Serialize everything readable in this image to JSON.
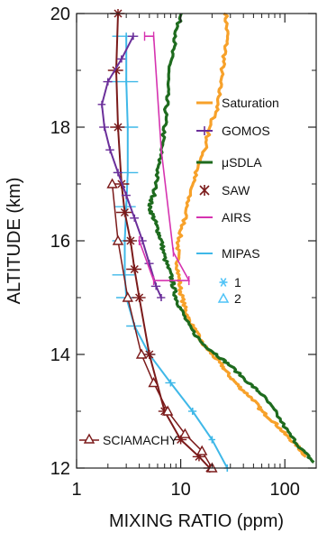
{
  "chart_data": {
    "type": "line",
    "xlabel": "MIXING RATIO (ppm)",
    "ylabel": "ALTITUDE (km)",
    "xscale": "log",
    "xlim": [
      1,
      200
    ],
    "ylim": [
      12,
      20
    ],
    "xticks": [
      {
        "value": 1,
        "label": "1"
      },
      {
        "value": 10,
        "label": "10"
      },
      {
        "value": 100,
        "label": "100"
      }
    ],
    "yticks": [
      {
        "value": 12,
        "label": "12"
      },
      {
        "value": 14,
        "label": "14"
      },
      {
        "value": 16,
        "label": "16"
      },
      {
        "value": 18,
        "label": "18"
      },
      {
        "value": 20,
        "label": "20"
      }
    ],
    "grid": false,
    "legend_position": "right",
    "legend_markers": [
      {
        "label": "1",
        "marker": "asterisk",
        "color": "#4FC3F7"
      },
      {
        "label": "2",
        "marker": "triangle",
        "color": "#4FC3F7"
      }
    ],
    "series": [
      {
        "name": "Saturation",
        "color": "#F7A12A",
        "style": "jagged",
        "x": [
          27,
          28,
          26,
          24,
          23,
          19,
          17,
          14,
          12,
          11,
          9.5,
          9.3,
          9.5,
          10,
          11,
          12,
          14,
          16,
          20,
          25,
          30,
          38,
          50,
          60,
          80,
          100,
          130,
          160
        ],
        "y": [
          20,
          19.6,
          19.2,
          18.8,
          18.4,
          18.0,
          17.6,
          17.2,
          16.8,
          16.4,
          16.0,
          15.7,
          15.4,
          15.1,
          14.8,
          14.6,
          14.4,
          14.2,
          14.0,
          13.8,
          13.6,
          13.4,
          13.2,
          13.0,
          12.8,
          12.6,
          12.4,
          12.2
        ]
      },
      {
        "name": "μSDLA",
        "color": "#1E6B1E",
        "style": "jagged",
        "x": [
          10,
          9,
          8,
          7.5,
          7.3,
          7,
          6.5,
          6,
          5.5,
          5.0,
          5.5,
          6,
          6.5,
          7,
          8,
          8.5,
          9,
          10,
          12,
          16,
          22,
          30,
          45,
          60,
          80,
          110,
          150,
          190
        ],
        "y": [
          20,
          19.6,
          19.2,
          18.8,
          18.4,
          18.0,
          17.6,
          17.2,
          16.8,
          16.6,
          16.4,
          16.2,
          16.0,
          15.7,
          15.4,
          15.2,
          15.0,
          14.8,
          14.5,
          14.2,
          14.0,
          13.8,
          13.5,
          13.3,
          13.0,
          12.6,
          12.3,
          12.1
        ]
      },
      {
        "name": "GOMOS",
        "color": "#6B2F9A",
        "style": "errorbar",
        "x": [
          3.5,
          2.7,
          2.0,
          1.75,
          1.85,
          2.1,
          2.5,
          3.0,
          3.6,
          4.3,
          5.0,
          5.8,
          6.5
        ],
        "y": [
          19.6,
          19.2,
          18.8,
          18.4,
          18.0,
          17.6,
          17.2,
          16.8,
          16.4,
          16.0,
          15.6,
          15.2,
          15.0
        ],
        "xerr": [
          0.4,
          0.25,
          0.2,
          0.15,
          0.2,
          0.2,
          0.25,
          0.3,
          0.35,
          0.4,
          0.5,
          0.6,
          0.6
        ]
      },
      {
        "name": "SAW",
        "color": "#7B1A1A",
        "style": "errorbar",
        "x": [
          2.5,
          2.4,
          2.5,
          2.7,
          2.9,
          3.3,
          3.6,
          4.0,
          5.0,
          7.0,
          10,
          15,
          19
        ],
        "y": [
          20.0,
          19.0,
          18.0,
          17.0,
          16.5,
          16.0,
          15.5,
          15.0,
          14.0,
          13.0,
          12.5,
          12.2,
          12.0
        ],
        "xerr": [
          0.4,
          0.4,
          0.4,
          0.5,
          0.5,
          0.5,
          0.6,
          0.6,
          0.7,
          0.9,
          1.4,
          2.0,
          2.5
        ]
      },
      {
        "name": "AIRS",
        "color": "#D633B0",
        "style": "segments",
        "x": [
          4.5,
          5.5,
          6.5,
          8.5,
          12,
          5.5,
          4.0
        ],
        "y": [
          19.6,
          19.6,
          17.6,
          15.8,
          15.3,
          15.3,
          16.0
        ]
      },
      {
        "name": "MIPAS",
        "color": "#3FB8E8",
        "style": "errorbar",
        "x": [
          3.0,
          3.0,
          3.1,
          3.1,
          3.0,
          2.9,
          2.9,
          3.0,
          3.6,
          5.0,
          8.0,
          13,
          20,
          28
        ],
        "y": [
          19.6,
          18.8,
          18.0,
          17.2,
          16.6,
          16.0,
          15.4,
          15.0,
          14.5,
          14.0,
          13.5,
          13.0,
          12.5,
          12.0
        ],
        "xerr": [
          0.8,
          0.9,
          0.8,
          0.8,
          0.7,
          0.7,
          0.7,
          0.6,
          0.6,
          0.7,
          0.9,
          1.2,
          1.5,
          2.0
        ]
      },
      {
        "name": "SCIAMACHY",
        "color": "#7B1A1A",
        "style": "triangle",
        "x": [
          2.2,
          2.5,
          3.1,
          4.2,
          5.5,
          7.5,
          11,
          16,
          20
        ],
        "y": [
          17.0,
          16.0,
          15.0,
          14.0,
          13.5,
          13.0,
          12.6,
          12.3,
          12.0
        ]
      }
    ]
  }
}
